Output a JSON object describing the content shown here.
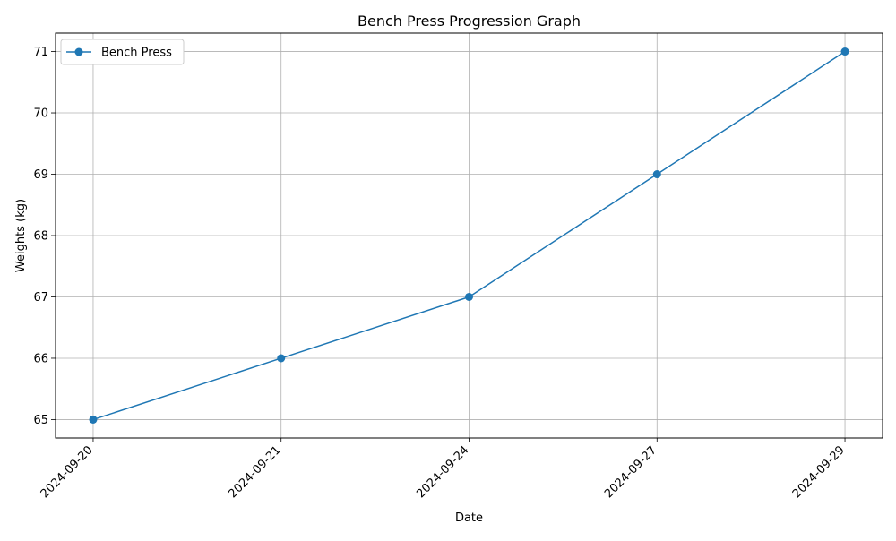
{
  "chart_data": {
    "type": "line",
    "title": "Bench Press Progression Graph",
    "xlabel": "Date",
    "ylabel": "Weights (kg)",
    "categories": [
      "2024-09-20",
      "2024-09-21",
      "2024-09-24",
      "2024-09-27",
      "2024-09-29"
    ],
    "series": [
      {
        "name": "Bench Press",
        "values": [
          65,
          66,
          67,
          69,
          71
        ],
        "color": "#1f77b4",
        "marker": "circle"
      }
    ],
    "yticks": [
      65,
      66,
      67,
      68,
      69,
      70,
      71
    ],
    "ylim": [
      64.7,
      71.3
    ],
    "grid": true,
    "legend_position": "top-left"
  }
}
